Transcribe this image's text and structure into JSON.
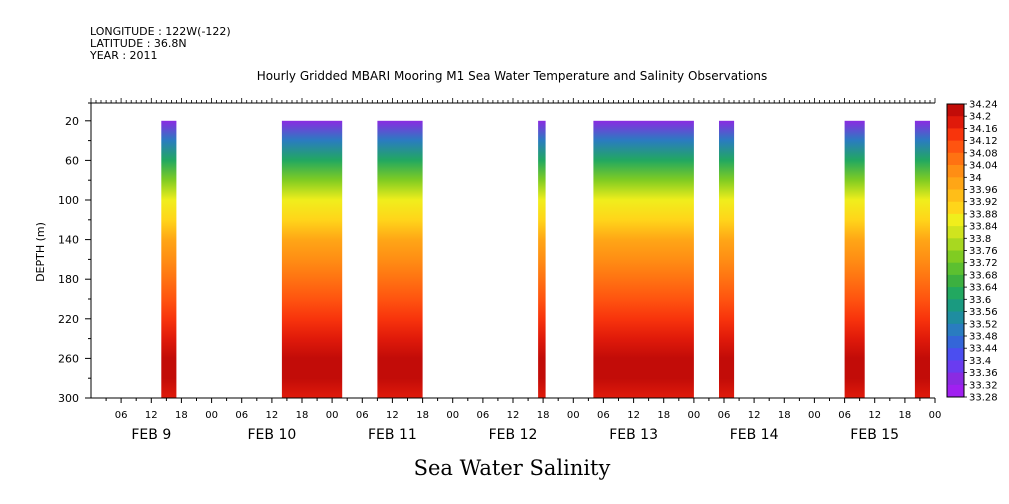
{
  "header": {
    "longitude": "LONGITUDE : 122W(-122)",
    "latitude": "LATITUDE : 36.8N",
    "year": "YEAR : 2011"
  },
  "chart_data": {
    "type": "heatmap",
    "title": "Hourly Gridded MBARI Mooring M1 Sea Water Temperature and Salinity Observations",
    "xlabel": "",
    "ylabel": "DEPTH (m)",
    "bottom_label": "Sea Water Salinity",
    "y_ticks": [
      20,
      60,
      100,
      140,
      180,
      220,
      260,
      300
    ],
    "ylim": [
      300,
      2
    ],
    "x_hour_ticks": [
      "06",
      "12",
      "18",
      "00",
      "06",
      "12",
      "18",
      "00",
      "06",
      "12",
      "18",
      "00",
      "06",
      "12",
      "18",
      "00",
      "06",
      "12",
      "18",
      "00",
      "06",
      "12",
      "18",
      "00",
      "06",
      "12",
      "18",
      "00"
    ],
    "x_date_labels": [
      "FEB  9",
      "FEB 10",
      "FEB 11",
      "FEB 12",
      "FEB 13",
      "FEB 14",
      "FEB 15"
    ],
    "x_range_hours": [
      0,
      168
    ],
    "data_segments_hours": [
      [
        14,
        17
      ],
      [
        38,
        50
      ],
      [
        57,
        66
      ],
      [
        89,
        90.5
      ],
      [
        100,
        120
      ],
      [
        125,
        128
      ],
      [
        150,
        154
      ],
      [
        164,
        167
      ]
    ],
    "depth_profile": {
      "depths": [
        20,
        40,
        60,
        80,
        100,
        120,
        140,
        160,
        180,
        200,
        220,
        240,
        260,
        280,
        300
      ],
      "values": [
        33.34,
        33.48,
        33.6,
        33.74,
        33.84,
        33.88,
        33.98,
        34.02,
        34.04,
        34.08,
        34.12,
        34.17,
        34.22,
        34.2,
        34.18
      ]
    },
    "colorbar": {
      "levels": [
        34.24,
        34.2,
        34.16,
        34.12,
        34.08,
        34.04,
        34,
        33.96,
        33.92,
        33.88,
        33.84,
        33.8,
        33.76,
        33.72,
        33.68,
        33.64,
        33.6,
        33.56,
        33.52,
        33.48,
        33.44,
        33.4,
        33.36,
        33.32,
        33.28
      ],
      "labels": [
        "34.24",
        "34.2",
        "34.16",
        "34.12",
        "34.08",
        "34.04",
        "34",
        "33.96",
        "33.92",
        "33.88",
        "33.84",
        "33.8",
        "33.76",
        "33.72",
        "33.68",
        "33.64",
        "33.6",
        "33.56",
        "33.52",
        "33.48",
        "33.44",
        "33.4",
        "33.36",
        "33.32",
        "33.28"
      ]
    },
    "grid": false,
    "legend": "right-colorbar"
  }
}
